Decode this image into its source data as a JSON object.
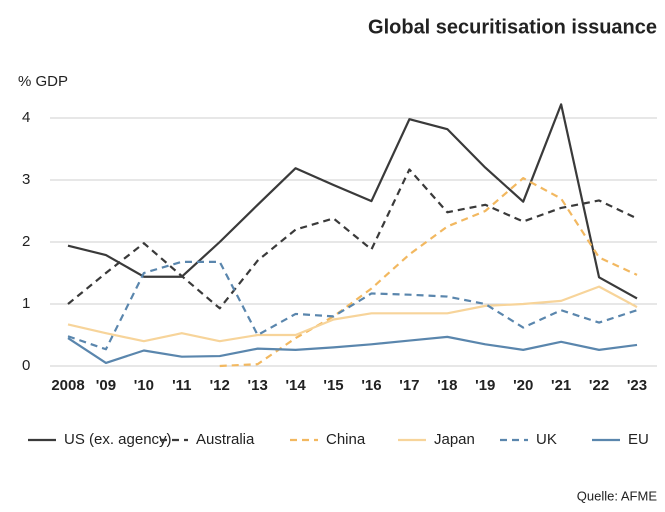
{
  "chart_data": {
    "type": "line",
    "title": "Global securitisation issuance",
    "y_label": "% GDP",
    "source": "Quelle: AFME",
    "categories": [
      "2008",
      "'09",
      "'10",
      "'11",
      "'12",
      "'13",
      "'14",
      "'15",
      "'16",
      "'17",
      "'18",
      "'19",
      "'20",
      "'21",
      "'22",
      "'23"
    ],
    "ylim": [
      0,
      4.3
    ],
    "yticks": [
      0,
      1,
      2,
      3,
      4
    ],
    "grid": true,
    "legend": "bottom",
    "series": [
      {
        "name": "US (ex. agency)",
        "color": "#3a3a3a",
        "dash": false,
        "values": [
          1.94,
          1.79,
          1.44,
          1.44,
          2.0,
          2.6,
          3.19,
          2.92,
          2.66,
          3.98,
          3.82,
          3.2,
          2.65,
          4.22,
          1.43,
          1.09
        ]
      },
      {
        "name": "Australia",
        "color": "#3a3a3a",
        "dash": true,
        "values": [
          1.0,
          1.5,
          1.98,
          1.45,
          0.93,
          1.7,
          2.2,
          2.38,
          1.88,
          3.17,
          2.48,
          2.6,
          2.33,
          2.55,
          2.67,
          2.38
        ]
      },
      {
        "name": "China",
        "color": "#f2b860",
        "dash": true,
        "values": [
          null,
          null,
          null,
          null,
          0.0,
          0.03,
          0.45,
          0.8,
          1.25,
          1.8,
          2.25,
          2.5,
          3.03,
          2.7,
          1.75,
          1.47
        ]
      },
      {
        "name": "Japan",
        "color": "#f7d49a",
        "dash": false,
        "values": [
          0.67,
          0.53,
          0.4,
          0.53,
          0.4,
          0.5,
          0.5,
          0.75,
          0.85,
          0.85,
          0.85,
          0.97,
          1.0,
          1.05,
          1.28,
          0.95
        ]
      },
      {
        "name": "UK",
        "color": "#5a86ad",
        "dash": true,
        "values": [
          0.48,
          0.27,
          1.5,
          1.68,
          1.68,
          0.5,
          0.84,
          0.8,
          1.17,
          1.15,
          1.12,
          1.0,
          0.62,
          0.9,
          0.7,
          0.9
        ]
      },
      {
        "name": "EU",
        "color": "#5a86ad",
        "dash": false,
        "values": [
          0.45,
          0.05,
          0.25,
          0.15,
          0.16,
          0.28,
          0.26,
          0.3,
          0.35,
          0.41,
          0.47,
          0.35,
          0.26,
          0.39,
          0.26,
          0.34
        ]
      }
    ]
  }
}
